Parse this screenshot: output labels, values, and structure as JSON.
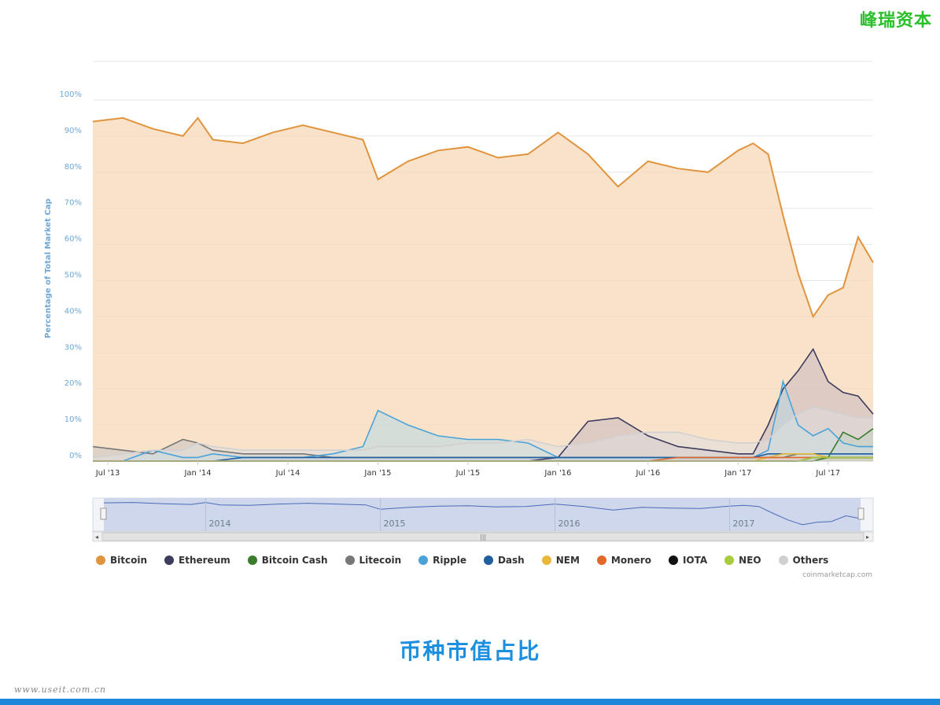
{
  "brand": "峰瑞资本",
  "caption": "币种市值占比",
  "watermark": "www.useit.com.cn",
  "credit": "coinmarketcap.com",
  "chart_data": {
    "type": "area",
    "title": "",
    "ylabel": "Percentage of Total Market Cap",
    "xlabel": "",
    "ylim": [
      0,
      100
    ],
    "grid": true,
    "legend_position": "bottom",
    "y_ticks": [
      "0%",
      "10%",
      "20%",
      "30%",
      "40%",
      "50%",
      "60%",
      "70%",
      "80%",
      "90%",
      "100%"
    ],
    "x_ticks": [
      "Jul '13",
      "Jan '14",
      "Jul '14",
      "Jan '15",
      "Jul '15",
      "Jan '16",
      "Jul '16",
      "Jan '17",
      "Jul '17"
    ],
    "navigator_labels": [
      "2014",
      "2015",
      "2016",
      "2017"
    ],
    "x": [
      "2013-06",
      "2013-08",
      "2013-10",
      "2013-12",
      "2014-01",
      "2014-02",
      "2014-04",
      "2014-06",
      "2014-08",
      "2014-10",
      "2014-12",
      "2015-01",
      "2015-03",
      "2015-05",
      "2015-07",
      "2015-09",
      "2015-11",
      "2016-01",
      "2016-03",
      "2016-05",
      "2016-07",
      "2016-09",
      "2016-11",
      "2017-01",
      "2017-02",
      "2017-03",
      "2017-04",
      "2017-05",
      "2017-06",
      "2017-07",
      "2017-08",
      "2017-09",
      "2017-10"
    ],
    "series": [
      {
        "name": "Bitcoin",
        "color": "#e0943e",
        "fill": "#f7d8b8",
        "values": [
          94,
          95,
          92,
          90,
          95,
          89,
          88,
          91,
          93,
          91,
          89,
          78,
          83,
          86,
          87,
          84,
          85,
          91,
          85,
          76,
          83,
          81,
          80,
          86,
          88,
          85,
          68,
          52,
          40,
          46,
          48,
          62,
          55
        ]
      },
      {
        "name": "Ethereum",
        "color": "#3d3b5e",
        "fill": "#c9b8c0",
        "values": [
          0,
          0,
          0,
          0,
          0,
          0,
          0,
          0,
          0,
          0,
          0,
          0,
          0,
          0,
          0,
          0,
          0,
          1,
          11,
          12,
          7,
          4,
          3,
          2,
          2,
          10,
          20,
          25,
          31,
          22,
          19,
          18,
          13
        ]
      },
      {
        "name": "Bitcoin Cash",
        "color": "#3a7d2c",
        "fill": "#9fc09a",
        "values": [
          0,
          0,
          0,
          0,
          0,
          0,
          0,
          0,
          0,
          0,
          0,
          0,
          0,
          0,
          0,
          0,
          0,
          0,
          0,
          0,
          0,
          0,
          0,
          0,
          0,
          0,
          0,
          0,
          0,
          1,
          8,
          6,
          9
        ]
      },
      {
        "name": "Litecoin",
        "color": "#777777",
        "fill": "#c9c5c2",
        "values": [
          4,
          3,
          2,
          6,
          5,
          3,
          2,
          2,
          2,
          1,
          1,
          1,
          1,
          1,
          1,
          1,
          1,
          1,
          1,
          1,
          1,
          1,
          1,
          1,
          1,
          1,
          1,
          2,
          2,
          2,
          2,
          2,
          2
        ]
      },
      {
        "name": "Ripple",
        "color": "#4aa3d8",
        "fill": "#b7d8e2",
        "values": [
          0,
          0,
          3,
          1,
          1,
          2,
          1,
          1,
          1,
          2,
          4,
          14,
          10,
          7,
          6,
          6,
          5,
          1,
          1,
          1,
          1,
          1,
          1,
          1,
          1,
          3,
          22,
          10,
          7,
          9,
          5,
          4,
          4
        ]
      },
      {
        "name": "Dash",
        "color": "#1f5f9e",
        "fill": "#a8bfd8",
        "values": [
          0,
          0,
          0,
          0,
          0,
          0,
          1,
          1,
          1,
          1,
          1,
          1,
          1,
          1,
          1,
          1,
          1,
          1,
          1,
          1,
          1,
          1,
          1,
          1,
          1,
          2,
          2,
          2,
          2,
          2,
          2,
          2,
          2
        ]
      },
      {
        "name": "NEM",
        "color": "#e8b838",
        "fill": "#f2dc9a",
        "values": [
          0,
          0,
          0,
          0,
          0,
          0,
          0,
          0,
          0,
          0,
          0,
          0,
          0,
          0,
          0,
          0,
          0,
          0,
          0,
          0,
          0,
          0,
          0,
          0,
          0,
          1,
          2,
          2,
          2,
          1,
          1,
          1,
          1
        ]
      },
      {
        "name": "Monero",
        "color": "#e06a2c",
        "fill": "#f0b89a",
        "values": [
          0,
          0,
          0,
          0,
          0,
          0,
          0,
          0,
          0,
          0,
          0,
          0,
          0,
          0,
          0,
          0,
          0,
          0,
          0,
          0,
          0,
          1,
          1,
          1,
          1,
          1,
          1,
          1,
          1,
          1,
          1,
          1,
          1
        ]
      },
      {
        "name": "IOTA",
        "color": "#111111",
        "fill": "#888888",
        "values": [
          0,
          0,
          0,
          0,
          0,
          0,
          0,
          0,
          0,
          0,
          0,
          0,
          0,
          0,
          0,
          0,
          0,
          0,
          0,
          0,
          0,
          0,
          0,
          0,
          0,
          0,
          0,
          0,
          1,
          1,
          1,
          1,
          1
        ]
      },
      {
        "name": "NEO",
        "color": "#a8cc3c",
        "fill": "#d6e6a0",
        "values": [
          0,
          0,
          0,
          0,
          0,
          0,
          0,
          0,
          0,
          0,
          0,
          0,
          0,
          0,
          0,
          0,
          0,
          0,
          0,
          0,
          0,
          0,
          0,
          0,
          0,
          0,
          0,
          0,
          1,
          1,
          1,
          1,
          1
        ]
      },
      {
        "name": "Others",
        "color": "#d0d0d0",
        "fill": "#dedede",
        "values": [
          1,
          2,
          3,
          3,
          5,
          4,
          3,
          3,
          3,
          3,
          3,
          4,
          4,
          4,
          5,
          5,
          6,
          4,
          5,
          7,
          8,
          8,
          6,
          5,
          5,
          6,
          10,
          13,
          15,
          14,
          13,
          12,
          12
        ]
      }
    ]
  }
}
